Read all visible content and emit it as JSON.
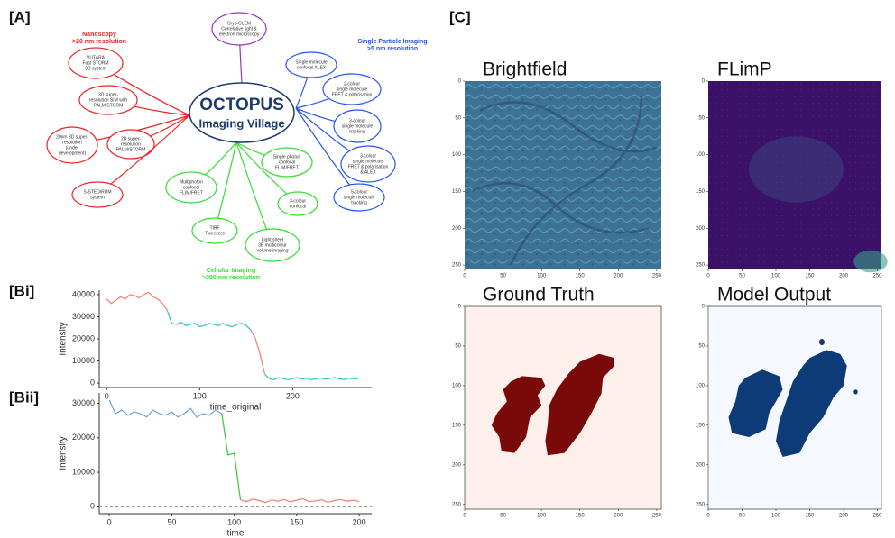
{
  "panels": [
    "[A]",
    "[Bi]",
    "[Bii]",
    "[C]"
  ],
  "diagram": {
    "center_title": "OCTOPUS",
    "center_subtitle": "Imaging Village",
    "groups": [
      {
        "title": "Nanoscopy",
        "subtitle": ">20 nm resolution",
        "color": "#ee2222",
        "nodes": [
          [
            "VUTARA",
            "Fast STORM",
            "3D system"
          ],
          [
            "3D super-",
            "resolution SIM with",
            "PALM/STORM"
          ],
          [
            "20nm 3D super-",
            "resolution",
            "(under",
            "development)"
          ],
          [
            "2D super-",
            "resolution",
            "PALM/STORM"
          ],
          [
            "S-STED/RUM",
            "system"
          ]
        ]
      },
      {
        "color": "#9933bb",
        "nodes": [
          [
            "Cryo-CLEM",
            "Correlative light &",
            "electron microscopy"
          ]
        ]
      },
      {
        "title": "Single Particle Imaging",
        "subtitle": ">5 nm resolution",
        "color": "#2255ee",
        "nodes": [
          [
            "Single molecule",
            "confocal ALEX"
          ],
          [
            "2-colour",
            "single molecule",
            "FRET & polarisation"
          ],
          [
            "3-colour",
            "single molecule",
            "tracking"
          ],
          [
            "3-colour",
            "single molecule",
            "FRET & polarisation",
            "& ALEX"
          ],
          [
            "5-colour",
            "single molecule",
            "tracking"
          ]
        ]
      },
      {
        "title": "Cellular Imaging",
        "subtitle": ">200 nm resolution",
        "color": "#33dd33",
        "nodes": [
          [
            "Single photon",
            "confocal",
            "FLIM/FRET"
          ],
          [
            "Multiphoton",
            "confocal",
            "FLIM/FRET"
          ],
          [
            "3-colour",
            "confocal"
          ],
          [
            "TIRF",
            "Tweezers"
          ],
          [
            "Light sheet",
            "3B multicolour",
            "volume imaging"
          ]
        ]
      }
    ]
  },
  "chart_data": [
    {
      "type": "line",
      "ylabel": "Intensity",
      "xlabel": "time_original",
      "xlim": [
        -8,
        285
      ],
      "ylim": [
        -2000,
        42000
      ],
      "xticks": [
        0,
        100,
        200
      ],
      "yticks": [
        0,
        10000,
        20000,
        30000,
        40000
      ],
      "x": [
        0,
        5,
        10,
        15,
        20,
        25,
        30,
        35,
        40,
        45,
        50,
        55,
        60,
        65,
        70,
        75,
        80,
        85,
        90,
        95,
        100,
        105,
        110,
        115,
        120,
        125,
        130,
        135,
        140,
        145,
        150,
        155,
        160,
        165,
        170,
        175,
        180,
        185,
        190,
        195,
        200,
        205,
        210,
        215,
        220,
        225,
        230,
        235,
        240,
        245,
        250,
        255,
        260,
        265,
        270
      ],
      "series": [
        {
          "color": "#f08070",
          "values": [
            38000,
            36000,
            37500,
            39000,
            38000,
            40000,
            39500,
            38500,
            40000,
            41000,
            39000,
            38000,
            36000,
            33000,
            null,
            null,
            null,
            null,
            null,
            null,
            null,
            null,
            null,
            null,
            null,
            null,
            null,
            null,
            null,
            null,
            null,
            24000,
            20000,
            13000,
            4000,
            null,
            null,
            null,
            null,
            null,
            null,
            null,
            null,
            null,
            null,
            null,
            null,
            null,
            null,
            null,
            null,
            null,
            null,
            null,
            null
          ]
        },
        {
          "color": "#30c0c8",
          "values": [
            null,
            null,
            null,
            null,
            null,
            null,
            null,
            null,
            null,
            null,
            null,
            null,
            null,
            33000,
            27000,
            26500,
            27500,
            26000,
            26500,
            27000,
            25500,
            26000,
            27000,
            26500,
            26000,
            27000,
            26000,
            25500,
            26500,
            27000,
            26000,
            24000,
            null,
            null,
            4000,
            2000,
            1500,
            2500,
            2000,
            1500,
            2000,
            2500,
            1800,
            2200,
            1500,
            2000,
            2300,
            1700,
            2100,
            2500,
            1900,
            1600,
            2200,
            2000,
            1800
          ]
        }
      ]
    },
    {
      "type": "line",
      "ylabel": "Intensity",
      "xlabel": "time",
      "xlim": [
        -8,
        210
      ],
      "ylim": [
        -2000,
        33000
      ],
      "hline": 0,
      "xticks": [
        0,
        50,
        100,
        150,
        200
      ],
      "yticks": [
        0,
        10000,
        20000,
        30000
      ],
      "x": [
        0,
        5,
        10,
        15,
        20,
        25,
        30,
        35,
        40,
        45,
        50,
        55,
        60,
        65,
        70,
        75,
        80,
        85,
        90,
        95,
        100,
        105,
        110,
        115,
        120,
        125,
        130,
        135,
        140,
        145,
        150,
        155,
        160,
        165,
        170,
        175,
        180,
        185,
        190,
        195,
        200
      ],
      "series": [
        {
          "color": "#6e9de8",
          "values": [
            31000,
            27000,
            28000,
            26500,
            27500,
            27000,
            26000,
            28000,
            27000,
            26500,
            27500,
            26000,
            27000,
            28500,
            26000,
            27000,
            26500,
            28000,
            27000,
            null,
            null,
            null,
            null,
            null,
            null,
            null,
            null,
            null,
            null,
            null,
            null,
            null,
            null,
            null,
            null,
            null,
            null,
            null,
            null,
            null,
            null
          ]
        },
        {
          "color": "#3cc43c",
          "values": [
            null,
            null,
            null,
            null,
            null,
            null,
            null,
            null,
            null,
            null,
            null,
            null,
            null,
            null,
            null,
            null,
            null,
            null,
            27000,
            15000,
            15500,
            2000,
            null,
            null,
            null,
            null,
            null,
            null,
            null,
            null,
            null,
            null,
            null,
            null,
            null,
            null,
            null,
            null,
            null,
            null,
            null
          ]
        },
        {
          "color": "#f08070",
          "values": [
            null,
            null,
            null,
            null,
            null,
            null,
            null,
            null,
            null,
            null,
            null,
            null,
            null,
            null,
            null,
            null,
            null,
            null,
            null,
            null,
            null,
            2000,
            1500,
            2200,
            1800,
            1200,
            2000,
            1600,
            2100,
            1400,
            1900,
            2300,
            1500,
            1700,
            2000,
            1300,
            1800,
            2100,
            1600,
            1900,
            1500
          ]
        }
      ]
    }
  ],
  "images": [
    {
      "title": "Brightfield",
      "xlim": [
        0,
        256
      ],
      "ylim": [
        0,
        256
      ],
      "xticks": [
        0,
        50,
        100,
        150,
        200,
        250
      ],
      "yticks": [
        0,
        50,
        100,
        150,
        200,
        250
      ]
    },
    {
      "title": "FLimP",
      "xlim": [
        0,
        256
      ],
      "ylim": [
        0,
        256
      ],
      "xticks": [
        0,
        50,
        100,
        150,
        200,
        250
      ],
      "yticks": [
        0,
        50,
        100,
        150,
        200,
        250
      ]
    },
    {
      "title": "Ground Truth",
      "xlim": [
        0,
        256
      ],
      "ylim": [
        0,
        256
      ],
      "xticks": [
        0,
        50,
        100,
        150,
        200,
        250
      ],
      "yticks": [
        0,
        50,
        100,
        150,
        200,
        250
      ]
    },
    {
      "title": "Model Output",
      "xlim": [
        0,
        256
      ],
      "ylim": [
        0,
        256
      ],
      "xticks": [
        0,
        50,
        100,
        150,
        200,
        250
      ],
      "yticks": [
        0,
        50,
        100,
        150,
        200,
        250
      ]
    }
  ]
}
